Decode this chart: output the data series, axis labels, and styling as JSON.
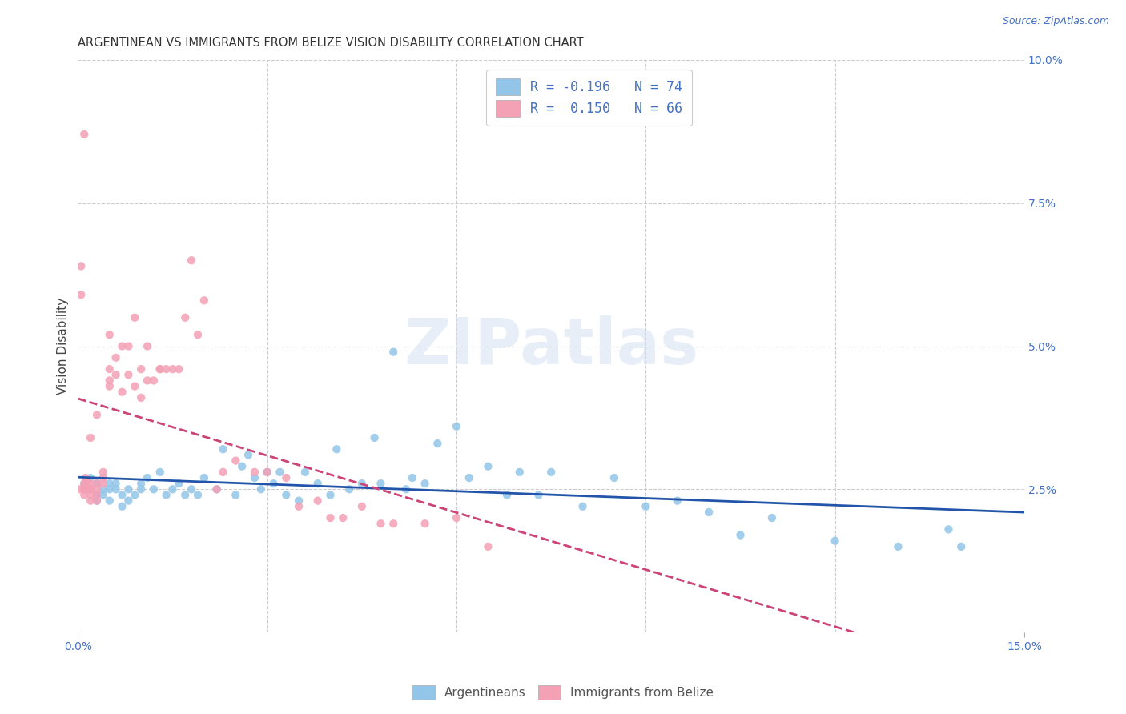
{
  "title": "ARGENTINEAN VS IMMIGRANTS FROM BELIZE VISION DISABILITY CORRELATION CHART",
  "source": "Source: ZipAtlas.com",
  "ylabel": "Vision Disability",
  "xlim": [
    0.0,
    0.15
  ],
  "ylim": [
    0.0,
    0.1
  ],
  "background_color": "#ffffff",
  "grid_color": "#cccccc",
  "watermark_text": "ZIPatlas",
  "color_argentinean": "#92c5e8",
  "color_belize": "#f4a0b5",
  "line_color_argentinean": "#2255aa",
  "line_color_belize": "#cc4477",
  "legend_label1": "R = -0.196   N = 74",
  "legend_label2": "R =  0.150   N = 66",
  "argentinean_x": [
    0.001,
    0.001,
    0.002,
    0.002,
    0.003,
    0.003,
    0.003,
    0.004,
    0.004,
    0.005,
    0.005,
    0.005,
    0.006,
    0.006,
    0.007,
    0.007,
    0.008,
    0.008,
    0.009,
    0.01,
    0.01,
    0.011,
    0.012,
    0.013,
    0.014,
    0.015,
    0.016,
    0.017,
    0.018,
    0.019,
    0.02,
    0.022,
    0.023,
    0.025,
    0.026,
    0.027,
    0.028,
    0.029,
    0.03,
    0.031,
    0.032,
    0.033,
    0.035,
    0.036,
    0.038,
    0.04,
    0.041,
    0.043,
    0.045,
    0.047,
    0.048,
    0.05,
    0.052,
    0.053,
    0.055,
    0.057,
    0.06,
    0.062,
    0.065,
    0.068,
    0.07,
    0.073,
    0.075,
    0.08,
    0.085,
    0.09,
    0.095,
    0.1,
    0.105,
    0.11,
    0.12,
    0.13,
    0.138,
    0.14
  ],
  "argentinean_y": [
    0.026,
    0.025,
    0.027,
    0.025,
    0.024,
    0.023,
    0.026,
    0.025,
    0.024,
    0.026,
    0.025,
    0.023,
    0.025,
    0.026,
    0.024,
    0.022,
    0.025,
    0.023,
    0.024,
    0.026,
    0.025,
    0.027,
    0.025,
    0.028,
    0.024,
    0.025,
    0.026,
    0.024,
    0.025,
    0.024,
    0.027,
    0.025,
    0.032,
    0.024,
    0.029,
    0.031,
    0.027,
    0.025,
    0.028,
    0.026,
    0.028,
    0.024,
    0.023,
    0.028,
    0.026,
    0.024,
    0.032,
    0.025,
    0.026,
    0.034,
    0.026,
    0.049,
    0.025,
    0.027,
    0.026,
    0.033,
    0.036,
    0.027,
    0.029,
    0.024,
    0.028,
    0.024,
    0.028,
    0.022,
    0.027,
    0.022,
    0.023,
    0.021,
    0.017,
    0.02,
    0.016,
    0.015,
    0.018,
    0.015
  ],
  "belize_x": [
    0.0003,
    0.0005,
    0.0005,
    0.001,
    0.001,
    0.001,
    0.001,
    0.0012,
    0.0015,
    0.002,
    0.002,
    0.002,
    0.002,
    0.002,
    0.003,
    0.003,
    0.003,
    0.003,
    0.004,
    0.004,
    0.004,
    0.005,
    0.005,
    0.005,
    0.006,
    0.006,
    0.007,
    0.007,
    0.008,
    0.008,
    0.009,
    0.009,
    0.01,
    0.01,
    0.011,
    0.011,
    0.012,
    0.013,
    0.013,
    0.014,
    0.015,
    0.016,
    0.017,
    0.018,
    0.019,
    0.02,
    0.022,
    0.023,
    0.025,
    0.028,
    0.03,
    0.033,
    0.035,
    0.038,
    0.04,
    0.042,
    0.045,
    0.048,
    0.05,
    0.055,
    0.06,
    0.065,
    0.005,
    0.003,
    0.002,
    0.001
  ],
  "belize_y": [
    0.025,
    0.064,
    0.059,
    0.025,
    0.026,
    0.025,
    0.024,
    0.027,
    0.026,
    0.025,
    0.026,
    0.025,
    0.024,
    0.023,
    0.026,
    0.025,
    0.024,
    0.023,
    0.028,
    0.027,
    0.026,
    0.044,
    0.046,
    0.043,
    0.045,
    0.048,
    0.05,
    0.042,
    0.05,
    0.045,
    0.043,
    0.055,
    0.041,
    0.046,
    0.044,
    0.05,
    0.044,
    0.046,
    0.046,
    0.046,
    0.046,
    0.046,
    0.055,
    0.065,
    0.052,
    0.058,
    0.025,
    0.028,
    0.03,
    0.028,
    0.028,
    0.027,
    0.022,
    0.023,
    0.02,
    0.02,
    0.022,
    0.019,
    0.019,
    0.019,
    0.02,
    0.015,
    0.052,
    0.038,
    0.034,
    0.087
  ]
}
